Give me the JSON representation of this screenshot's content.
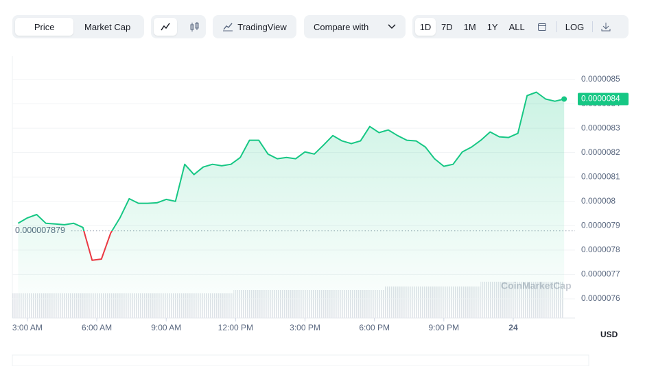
{
  "toolbar": {
    "price": "Price",
    "market_cap": "Market Cap",
    "tradingview": "TradingView",
    "compare": "Compare with",
    "ranges": [
      "1D",
      "7D",
      "1M",
      "1Y",
      "ALL"
    ],
    "log": "LOG"
  },
  "chart_data": {
    "type": "line",
    "x": [
      2.6,
      3.0,
      3.4,
      3.8,
      4.2,
      4.6,
      5.0,
      5.4,
      5.8,
      6.2,
      6.6,
      7.0,
      7.4,
      7.8,
      8.2,
      8.6,
      9.0,
      9.4,
      9.8,
      10.2,
      10.6,
      11.0,
      11.4,
      11.8,
      12.2,
      12.6,
      13.0,
      13.4,
      13.8,
      14.2,
      14.6,
      15.0,
      15.4,
      15.8,
      16.2,
      16.6,
      17.0,
      17.4,
      17.8,
      18.2,
      18.6,
      19.0,
      19.4,
      19.8,
      20.2,
      20.6,
      21.0,
      21.4,
      21.8,
      22.2,
      22.6,
      23.0,
      23.4,
      23.8,
      24.2,
      24.6,
      25.0,
      25.4,
      25.8,
      26.2
    ],
    "series": [
      {
        "name": "Price",
        "color": "#16c784",
        "down_color": "#ea3943",
        "values": [
          7.91e-06,
          7.932e-06,
          7.946e-06,
          7.91e-06,
          7.907e-06,
          7.904e-06,
          7.91e-06,
          7.893e-06,
          7.758e-06,
          7.763e-06,
          7.87e-06,
          7.932e-06,
          8.011e-06,
          7.992e-06,
          7.992e-06,
          7.994e-06,
          8.008e-06,
          8e-06,
          8.152e-06,
          8.11e-06,
          8.141e-06,
          8.152e-06,
          8.146e-06,
          8.152e-06,
          8.18e-06,
          8.251e-06,
          8.251e-06,
          8.194e-06,
          8.175e-06,
          8.18e-06,
          8.175e-06,
          8.203e-06,
          8.194e-06,
          8.231e-06,
          8.27e-06,
          8.248e-06,
          8.237e-06,
          8.248e-06,
          8.307e-06,
          8.282e-06,
          8.293e-06,
          8.27e-06,
          8.251e-06,
          8.248e-06,
          8.223e-06,
          8.175e-06,
          8.144e-06,
          8.152e-06,
          8.203e-06,
          8.223e-06,
          8.251e-06,
          8.285e-06,
          8.265e-06,
          8.262e-06,
          8.279e-06,
          8.434e-06,
          8.448e-06,
          8.42e-06,
          8.411e-06,
          8.42e-06
        ]
      }
    ],
    "xlim": [
      2.35,
      26.67
    ],
    "xticks": [
      {
        "value": 3,
        "label": "3:00 AM"
      },
      {
        "value": 6,
        "label": "6:00 AM"
      },
      {
        "value": 9,
        "label": "9:00 AM"
      },
      {
        "value": 12,
        "label": "12:00 PM"
      },
      {
        "value": 15,
        "label": "3:00 PM"
      },
      {
        "value": 18,
        "label": "6:00 PM"
      },
      {
        "value": 21,
        "label": "9:00 PM"
      },
      {
        "value": 24,
        "label": "24"
      }
    ],
    "ylim": [
      7.5e-06,
      8.6e-06
    ],
    "yticks": [
      7.6e-06,
      7.7e-06,
      7.8e-06,
      7.9e-06,
      8e-06,
      8.1e-06,
      8.2e-06,
      8.3e-06,
      8.4e-06,
      8.5e-06
    ],
    "reference": 7.879e-06,
    "last_label": "0.0000084",
    "currency": "USD",
    "watermark": "CoinMarketCap",
    "grid": true
  }
}
